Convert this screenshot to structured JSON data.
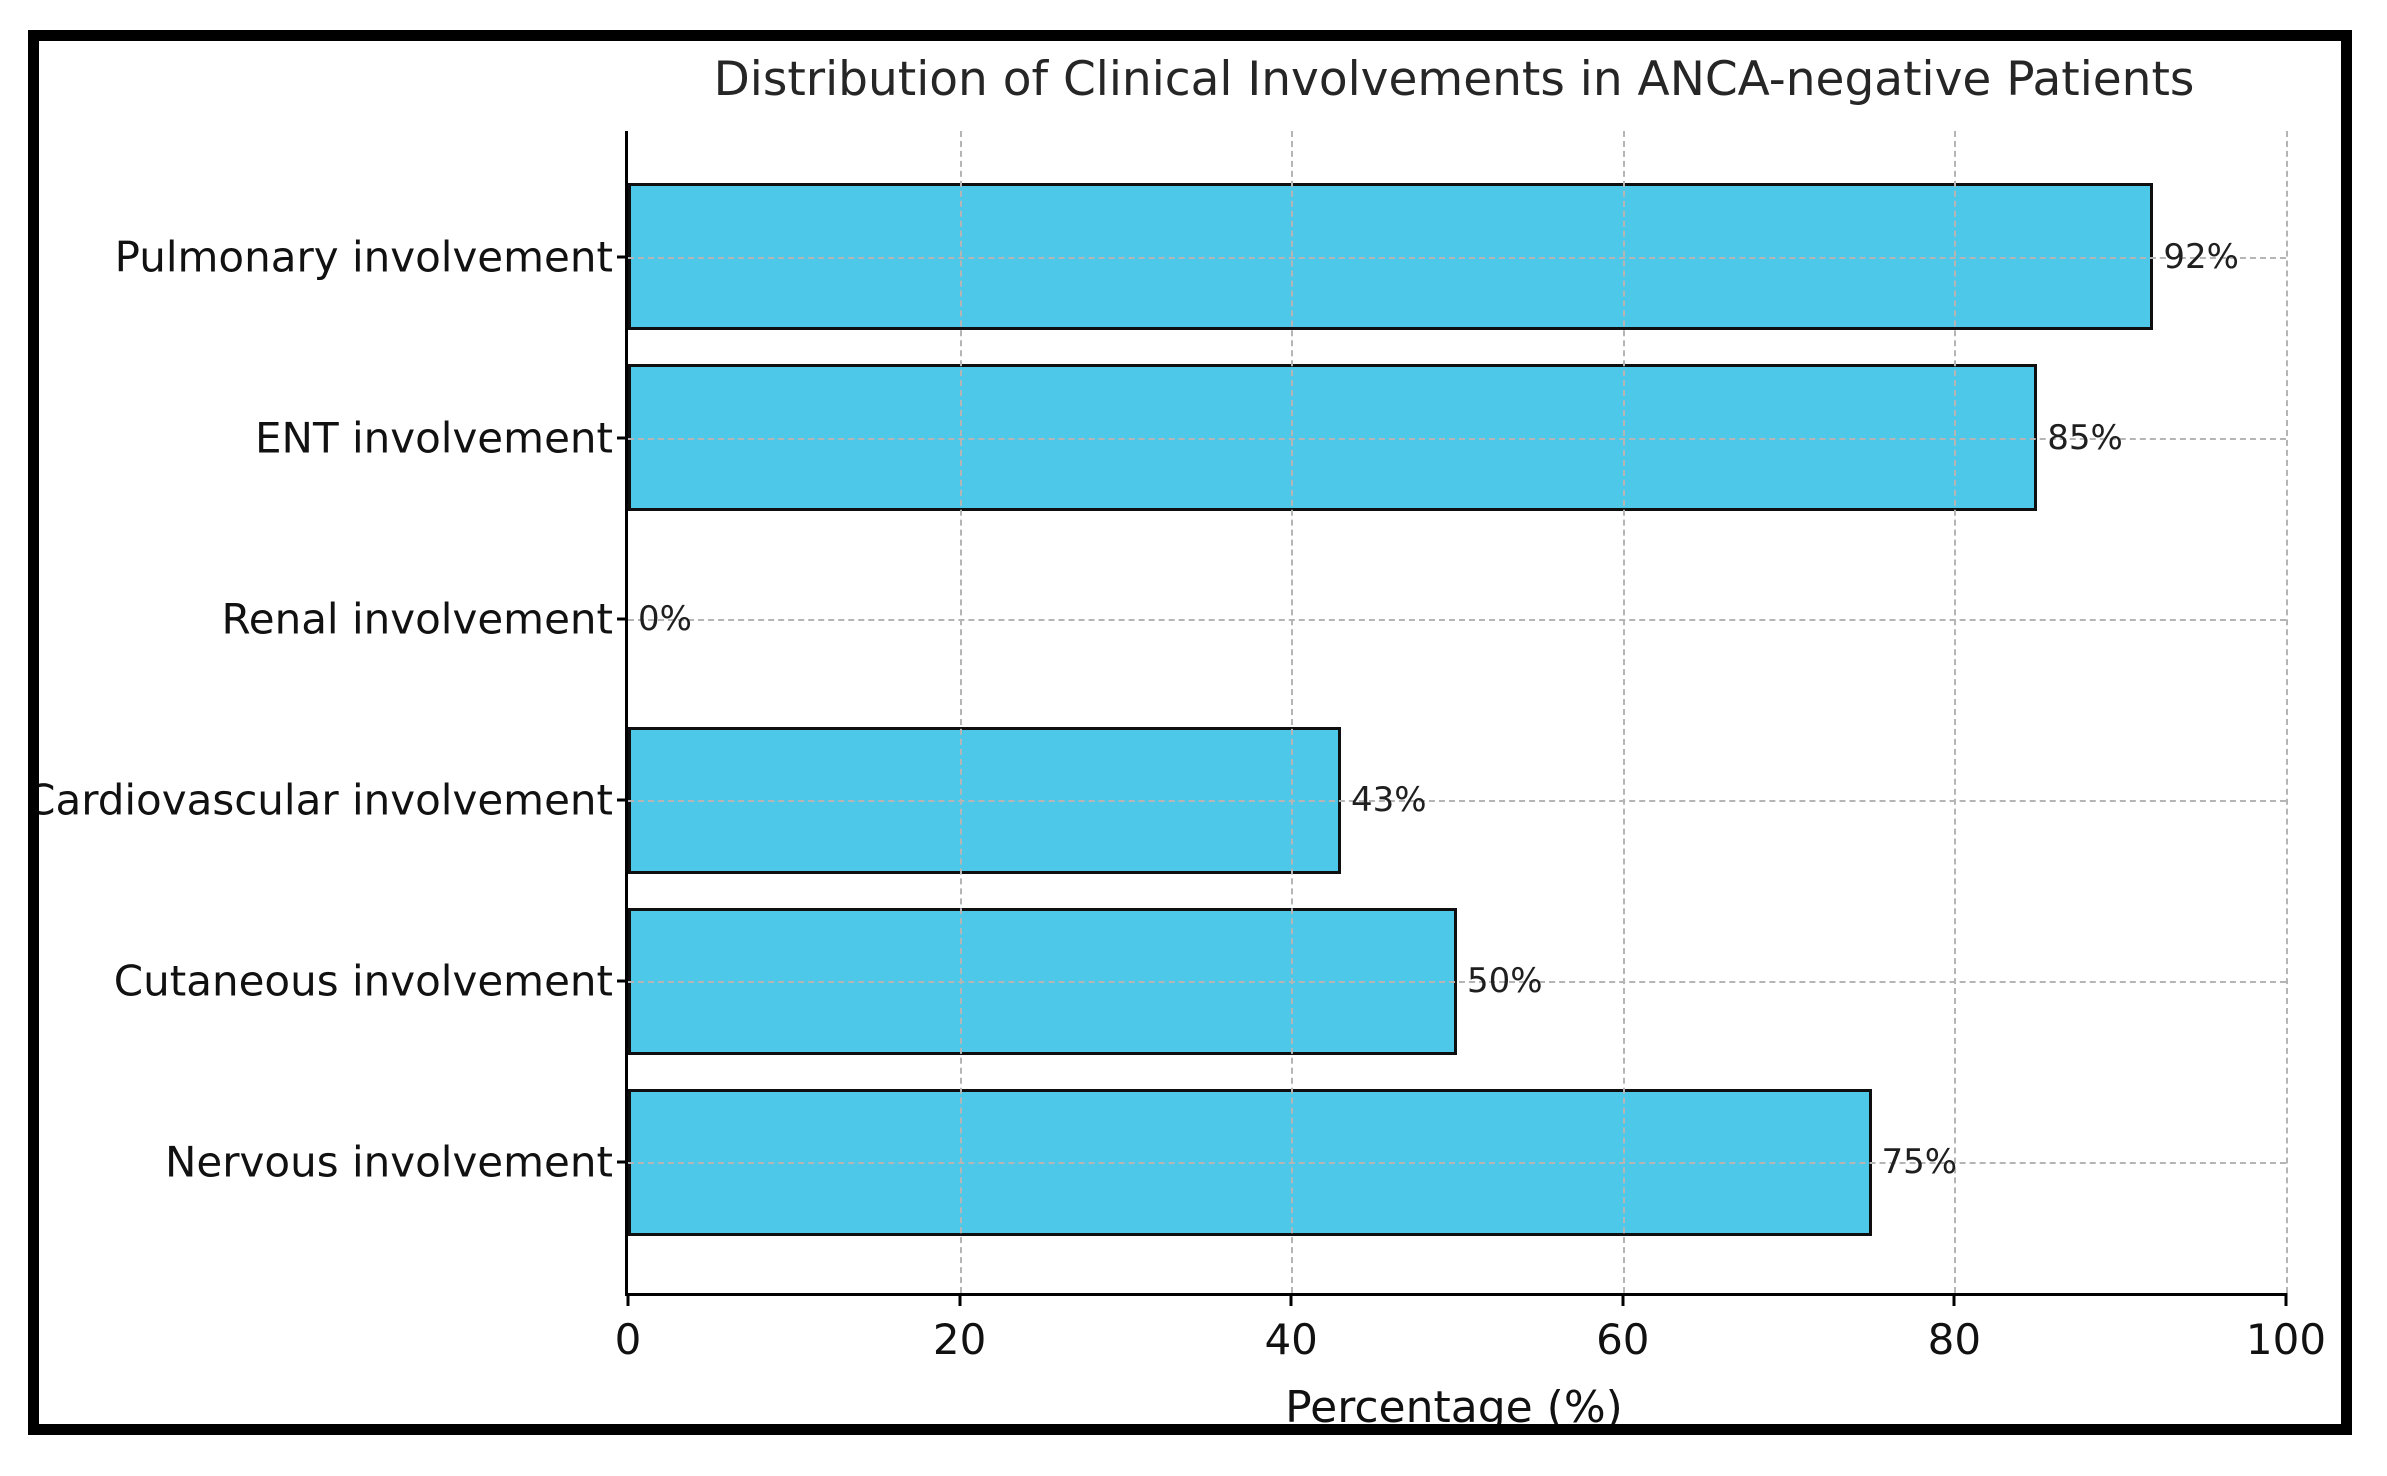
{
  "chart_data": {
    "type": "bar",
    "orientation": "horizontal",
    "title": "Distribution of Clinical Involvements in ANCA-negative Patients",
    "xlabel": "Percentage (%)",
    "categories": [
      "Pulmonary involvement",
      "ENT involvement",
      "Renal involvement",
      "Cardiovascular involvement",
      "Cutaneous involvement",
      "Nervous involvement"
    ],
    "values": [
      92,
      85,
      0,
      43,
      50,
      75
    ],
    "value_labels": [
      "92%",
      "85%",
      "0%",
      "43%",
      "50%",
      "75%"
    ],
    "xlim": [
      0,
      100
    ],
    "xticks": [
      0,
      20,
      40,
      60,
      80,
      100
    ],
    "grid": true,
    "legend": null,
    "bar_color": "#4DC8E8",
    "bar_edge_color": "#0f0f0f",
    "grid_color": "#b5b5b5",
    "frame_color": "#000000"
  }
}
